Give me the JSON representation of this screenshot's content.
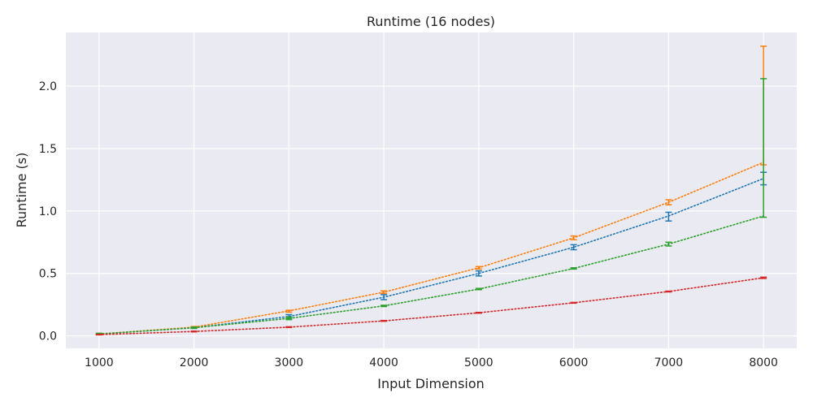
{
  "chart_data": {
    "type": "line",
    "title": "Runtime (16 nodes)",
    "xlabel": "Input Dimension",
    "ylabel": "Runtime (s)",
    "x": [
      1000,
      2000,
      3000,
      4000,
      5000,
      6000,
      7000,
      8000
    ],
    "xticks": [
      "1000",
      "2000",
      "3000",
      "4000",
      "5000",
      "6000",
      "7000",
      "8000"
    ],
    "yticks": [
      "0.0",
      "0.5",
      "1.0",
      "1.5",
      "2.0"
    ],
    "ytick_values": [
      0.0,
      0.5,
      1.0,
      1.5,
      2.0
    ],
    "xlim": [
      650,
      8350
    ],
    "ylim": [
      -0.1,
      2.43
    ],
    "grid": true,
    "background": "#eaeaf2",
    "series": [
      {
        "color": "#1f77b4",
        "values": [
          0.015,
          0.065,
          0.155,
          0.31,
          0.5,
          0.71,
          0.96,
          1.26
        ],
        "err_low": [
          0.01,
          0.06,
          0.14,
          0.29,
          0.48,
          0.69,
          0.92,
          1.21
        ],
        "err_high": [
          0.02,
          0.07,
          0.17,
          0.33,
          0.52,
          0.73,
          0.99,
          1.31
        ]
      },
      {
        "color": "#ff7f0e",
        "values": [
          0.015,
          0.07,
          0.2,
          0.35,
          0.545,
          0.785,
          1.07,
          1.39
        ],
        "err_low": [
          0.01,
          0.065,
          0.19,
          0.34,
          0.535,
          0.77,
          1.05,
          1.37
        ],
        "err_high": [
          0.02,
          0.075,
          0.205,
          0.36,
          0.555,
          0.8,
          1.09,
          2.32
        ]
      },
      {
        "color": "#2ca02c",
        "values": [
          0.015,
          0.065,
          0.14,
          0.24,
          0.375,
          0.54,
          0.735,
          0.96
        ],
        "err_low": [
          0.01,
          0.06,
          0.13,
          0.235,
          0.37,
          0.535,
          0.72,
          0.95
        ],
        "err_high": [
          0.02,
          0.07,
          0.15,
          0.245,
          0.38,
          0.545,
          0.75,
          2.06
        ]
      },
      {
        "color": "#d62728",
        "values": [
          0.01,
          0.035,
          0.07,
          0.12,
          0.185,
          0.265,
          0.355,
          0.465
        ],
        "err_low": [
          0.008,
          0.032,
          0.067,
          0.117,
          0.182,
          0.262,
          0.352,
          0.46
        ],
        "err_high": [
          0.012,
          0.038,
          0.073,
          0.123,
          0.188,
          0.268,
          0.358,
          0.47
        ]
      }
    ]
  }
}
